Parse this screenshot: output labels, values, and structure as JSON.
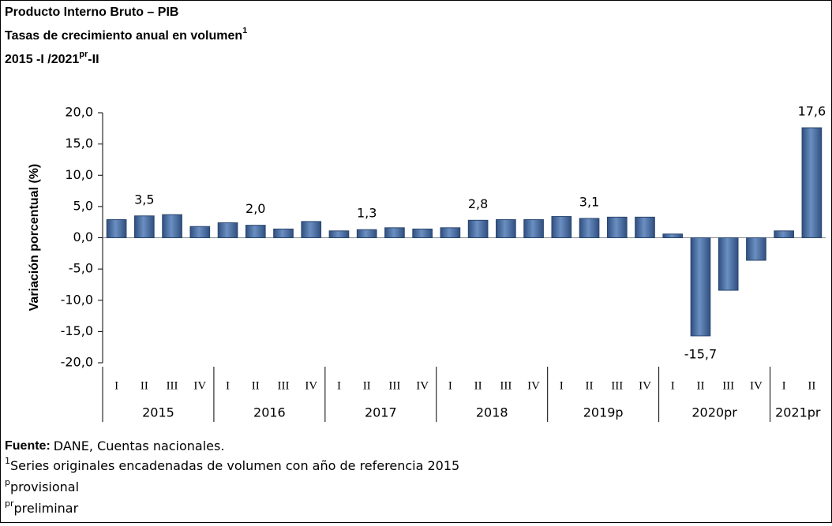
{
  "title": "Producto Interno Bruto – PIB",
  "subtitle": "Tasas de crecimiento anual en volumen",
  "subtitle_sup": "1",
  "period": "2015 -I /2021",
  "period_sup": "pr",
  "period_suffix": "-II",
  "footnotes": {
    "source_label": "Fuente:",
    "source": "DANE, Cuentas nacionales.",
    "note1_sup": "1",
    "note1": "Series originales encadenadas de volumen con año de referencia 2015",
    "note2_sup": "p",
    "note2": "provisional",
    "note3_sup": "pr",
    "note3": "preliminar"
  },
  "chart_data": {
    "type": "bar",
    "ylabel": "Variación porcentual  (%)",
    "categories": [
      "I",
      "II",
      "III",
      "IV",
      "I",
      "II",
      "III",
      "IV",
      "I",
      "II",
      "III",
      "IV",
      "I",
      "II",
      "III",
      "IV",
      "I",
      "II",
      "III",
      "IV",
      "I",
      "II",
      "III",
      "IV",
      "I",
      "II"
    ],
    "years": [
      "2015",
      "2016",
      "2017",
      "2018",
      "2019p",
      "2020pr",
      "2021pr"
    ],
    "values": [
      2.9,
      3.5,
      3.7,
      1.8,
      2.4,
      2.0,
      1.4,
      2.6,
      1.1,
      1.3,
      1.6,
      1.4,
      1.6,
      2.8,
      2.9,
      2.9,
      3.4,
      3.1,
      3.3,
      3.3,
      0.6,
      -15.7,
      -8.4,
      -3.6,
      1.1,
      17.6
    ],
    "value_labels": [
      null,
      "3,5",
      null,
      null,
      null,
      "2,0",
      null,
      null,
      null,
      "1,3",
      null,
      null,
      null,
      "2,8",
      null,
      null,
      null,
      "3,1",
      null,
      null,
      null,
      "-15,7",
      null,
      null,
      null,
      "17,6"
    ],
    "color": "#4f74a8",
    "ylim": [
      -20,
      20
    ],
    "yticks": [
      {
        "value": -20,
        "label": "-20,0"
      },
      {
        "value": -15,
        "label": "-15,0"
      },
      {
        "value": -10,
        "label": "-10,0"
      },
      {
        "value": -5,
        "label": "-5,0"
      },
      {
        "value": 0,
        "label": "0,0"
      },
      {
        "value": 5,
        "label": "5,0"
      },
      {
        "value": 10,
        "label": "10,0"
      },
      {
        "value": 15,
        "label": "15,0"
      },
      {
        "value": 20,
        "label": "20,0"
      }
    ]
  }
}
